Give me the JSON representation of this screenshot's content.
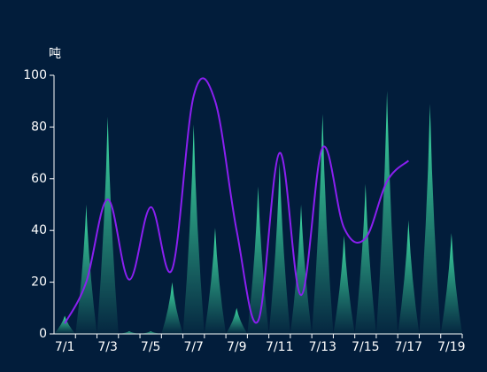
{
  "chart_data": {
    "type": "pictorial-bar-line",
    "y_axis_label": "吨",
    "categories": [
      "7/1",
      null,
      "7/3",
      null,
      "7/5",
      null,
      "7/7",
      null,
      "7/9",
      null,
      "7/11",
      null,
      "7/13",
      null,
      "7/15",
      null,
      "7/17",
      null,
      "7/19"
    ],
    "series": [
      {
        "type": "pictorial-bar",
        "color": "#3fe0a6",
        "values": [
          7,
          50,
          84,
          1,
          1,
          20,
          81,
          41,
          10,
          57,
          66,
          50,
          85,
          38,
          58,
          94,
          44,
          89,
          39
        ]
      },
      {
        "type": "line",
        "color": "#8a1ff0",
        "smooth": true,
        "values": [
          4,
          20,
          52,
          21,
          49,
          25,
          92,
          90,
          40,
          5,
          70,
          15,
          72,
          41,
          37,
          59,
          67,
          null,
          null
        ]
      }
    ],
    "ylim": [
      0,
      100
    ],
    "yticks": [
      0,
      20,
      40,
      60,
      80,
      100
    ],
    "grid": false
  }
}
